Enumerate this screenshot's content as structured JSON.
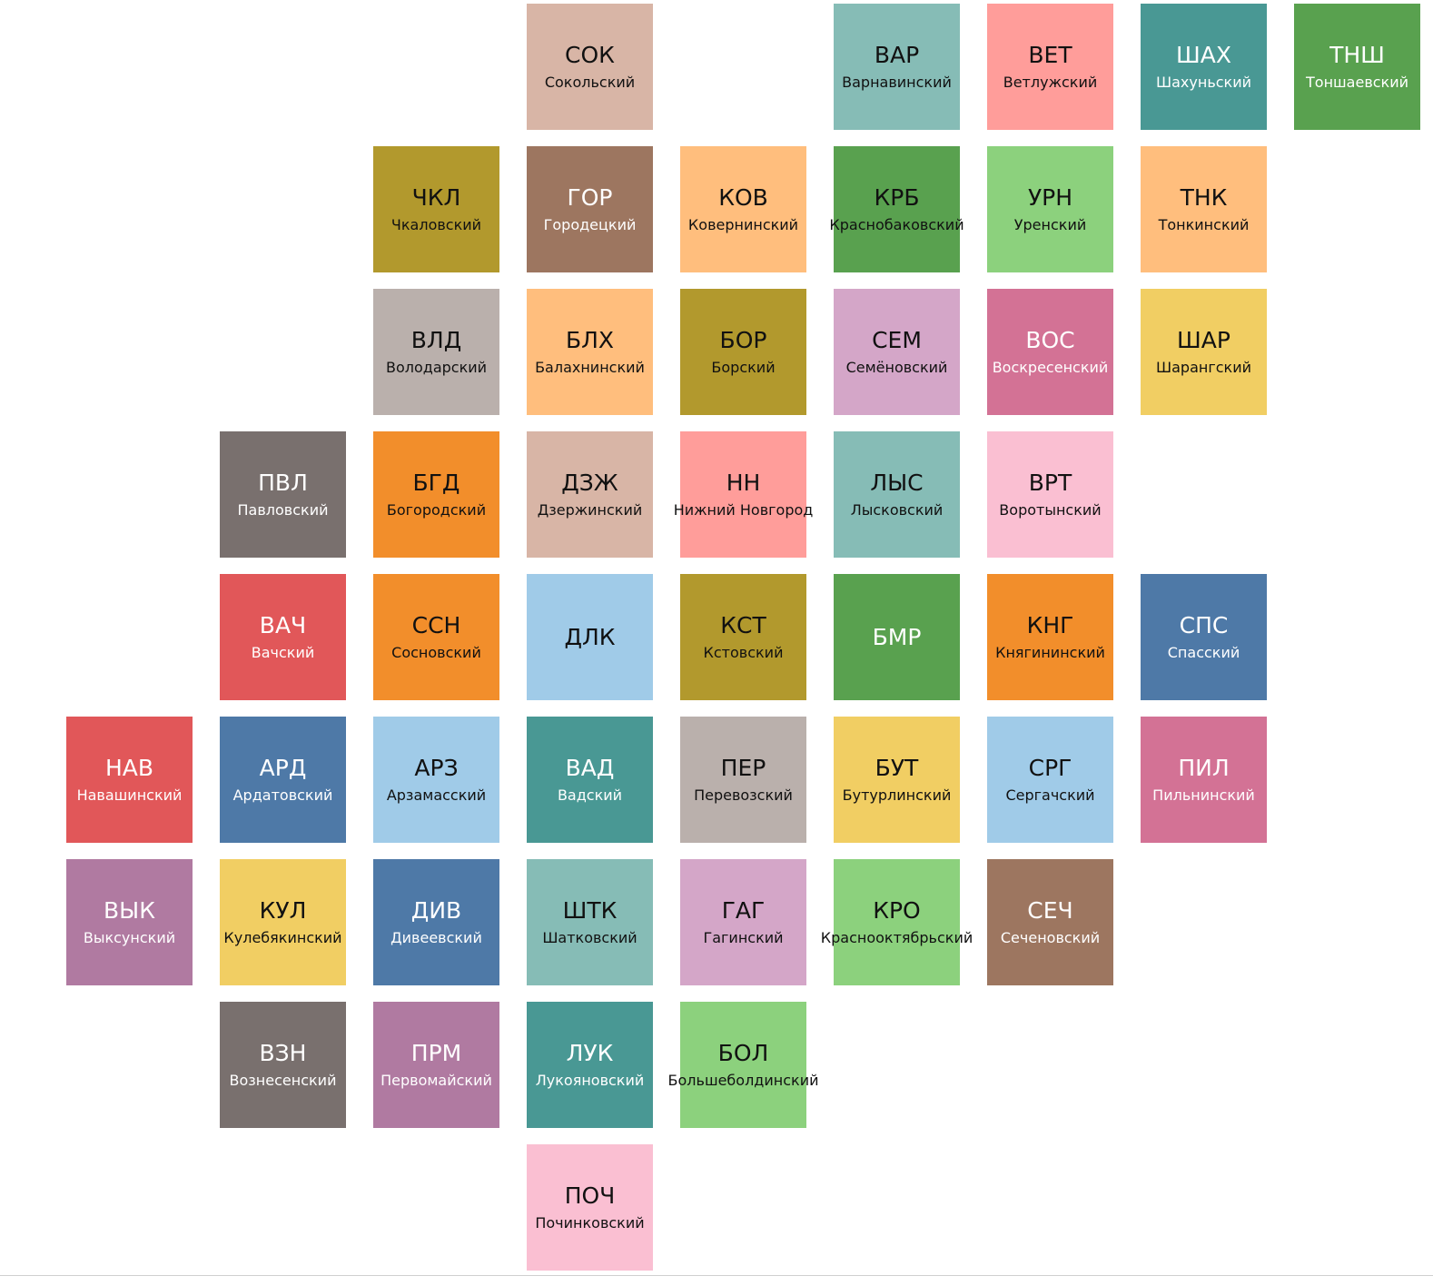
{
  "map": {
    "tiles": [
      {
        "abbr": "СОК",
        "name": "Сокольский",
        "row": 0,
        "col": 3,
        "color": "#d8b5a6",
        "text": "light"
      },
      {
        "abbr": "ВАР",
        "name": "Варнавинский",
        "row": 0,
        "col": 5,
        "color": "#86bcb6",
        "text": "light"
      },
      {
        "abbr": "ВЕТ",
        "name": "Ветлужский",
        "row": 0,
        "col": 6,
        "color": "#ff9d9a",
        "text": "light"
      },
      {
        "abbr": "ШАХ",
        "name": "Шахуньский",
        "row": 0,
        "col": 7,
        "color": "#499894",
        "text": "dark"
      },
      {
        "abbr": "ТНШ",
        "name": "Тоншаевский",
        "row": 0,
        "col": 8,
        "color": "#59a14f",
        "text": "dark"
      },
      {
        "abbr": "ЧКЛ",
        "name": "Чкаловский",
        "row": 1,
        "col": 2,
        "color": "#b2992d",
        "text": "light"
      },
      {
        "abbr": "ГОР",
        "name": "Городецкий",
        "row": 1,
        "col": 3,
        "color": "#9d7660",
        "text": "dark"
      },
      {
        "abbr": "КОВ",
        "name": "Ковернинский",
        "row": 1,
        "col": 4,
        "color": "#ffbe7d",
        "text": "light"
      },
      {
        "abbr": "КРБ",
        "name": "Краснобаковский",
        "row": 1,
        "col": 5,
        "color": "#59a14f",
        "text": "light"
      },
      {
        "abbr": "УРН",
        "name": "Уренский",
        "row": 1,
        "col": 6,
        "color": "#8cd17d",
        "text": "light"
      },
      {
        "abbr": "ТНК",
        "name": "Тонкинский",
        "row": 1,
        "col": 7,
        "color": "#ffbe7d",
        "text": "light"
      },
      {
        "abbr": "ВЛД",
        "name": "Володарский",
        "row": 2,
        "col": 2,
        "color": "#bab0ac",
        "text": "light"
      },
      {
        "abbr": "БЛХ",
        "name": "Балахнинский",
        "row": 2,
        "col": 3,
        "color": "#ffbe7d",
        "text": "light"
      },
      {
        "abbr": "БОР",
        "name": "Борский",
        "row": 2,
        "col": 4,
        "color": "#b2992d",
        "text": "light"
      },
      {
        "abbr": "СЕМ",
        "name": "Семёновский",
        "row": 2,
        "col": 5,
        "color": "#d4a6c8",
        "text": "light"
      },
      {
        "abbr": "ВОС",
        "name": "Воскресенский",
        "row": 2,
        "col": 6,
        "color": "#d37295",
        "text": "dark"
      },
      {
        "abbr": "ШАР",
        "name": "Шарангский",
        "row": 2,
        "col": 7,
        "color": "#f1ce63",
        "text": "light"
      },
      {
        "abbr": "ПВЛ",
        "name": "Павловский",
        "row": 3,
        "col": 1,
        "color": "#79706e",
        "text": "dark"
      },
      {
        "abbr": "БГД",
        "name": "Богородский",
        "row": 3,
        "col": 2,
        "color": "#f28e2b",
        "text": "light"
      },
      {
        "abbr": "ДЗЖ",
        "name": "Дзержинский",
        "row": 3,
        "col": 3,
        "color": "#d8b5a6",
        "text": "light"
      },
      {
        "abbr": "НН",
        "name": "Нижний Новгород",
        "row": 3,
        "col": 4,
        "color": "#ff9d9a",
        "text": "light"
      },
      {
        "abbr": "ЛЫС",
        "name": "Лысковский",
        "row": 3,
        "col": 5,
        "color": "#86bcb6",
        "text": "light"
      },
      {
        "abbr": "ВРТ",
        "name": "Воротынский",
        "row": 3,
        "col": 6,
        "color": "#fabfd2",
        "text": "light"
      },
      {
        "abbr": "ВАЧ",
        "name": "Вачский",
        "row": 4,
        "col": 1,
        "color": "#e15759",
        "text": "dark"
      },
      {
        "abbr": "ССН",
        "name": "Сосновский",
        "row": 4,
        "col": 2,
        "color": "#f28e2b",
        "text": "light"
      },
      {
        "abbr": "ДЛК",
        "name": "",
        "row": 4,
        "col": 3,
        "color": "#a0cbe8",
        "text": "light"
      },
      {
        "abbr": "КСТ",
        "name": "Кстовский",
        "row": 4,
        "col": 4,
        "color": "#b2992d",
        "text": "light"
      },
      {
        "abbr": "БМР",
        "name": "",
        "row": 4,
        "col": 5,
        "color": "#59a14f",
        "text": "dark"
      },
      {
        "abbr": "КНГ",
        "name": "Княгининский",
        "row": 4,
        "col": 6,
        "color": "#f28e2b",
        "text": "light"
      },
      {
        "abbr": "СПС",
        "name": "Спасский",
        "row": 4,
        "col": 7,
        "color": "#4e79a7",
        "text": "dark"
      },
      {
        "abbr": "НАВ",
        "name": "Навашинский",
        "row": 5,
        "col": 0,
        "color": "#e15759",
        "text": "dark"
      },
      {
        "abbr": "АРД",
        "name": "Ардатовский",
        "row": 5,
        "col": 1,
        "color": "#4e79a7",
        "text": "dark"
      },
      {
        "abbr": "АРЗ",
        "name": "Арзамасский",
        "row": 5,
        "col": 2,
        "color": "#a0cbe8",
        "text": "light"
      },
      {
        "abbr": "ВАД",
        "name": "Вадский",
        "row": 5,
        "col": 3,
        "color": "#499894",
        "text": "dark"
      },
      {
        "abbr": "ПЕР",
        "name": "Перевозский",
        "row": 5,
        "col": 4,
        "color": "#bab0ac",
        "text": "light"
      },
      {
        "abbr": "БУТ",
        "name": "Бутурлинский",
        "row": 5,
        "col": 5,
        "color": "#f1ce63",
        "text": "light"
      },
      {
        "abbr": "СРГ",
        "name": "Сергачский",
        "row": 5,
        "col": 6,
        "color": "#a0cbe8",
        "text": "light"
      },
      {
        "abbr": "ПИЛ",
        "name": "Пильнинский",
        "row": 5,
        "col": 7,
        "color": "#d37295",
        "text": "dark"
      },
      {
        "abbr": "ВЫК",
        "name": "Выксунский",
        "row": 6,
        "col": 0,
        "color": "#b07aa1",
        "text": "dark"
      },
      {
        "abbr": "КУЛ",
        "name": "Кулебякинский",
        "row": 6,
        "col": 1,
        "color": "#f1ce63",
        "text": "light"
      },
      {
        "abbr": "ДИВ",
        "name": "Дивеевский",
        "row": 6,
        "col": 2,
        "color": "#4e79a7",
        "text": "dark"
      },
      {
        "abbr": "ШТК",
        "name": "Шатковский",
        "row": 6,
        "col": 3,
        "color": "#86bcb6",
        "text": "light"
      },
      {
        "abbr": "ГАГ",
        "name": "Гагинский",
        "row": 6,
        "col": 4,
        "color": "#d4a6c8",
        "text": "light"
      },
      {
        "abbr": "КРО",
        "name": "Краснооктябрьский",
        "row": 6,
        "col": 5,
        "color": "#8cd17d",
        "text": "light"
      },
      {
        "abbr": "СЕЧ",
        "name": "Сеченовский",
        "row": 6,
        "col": 6,
        "color": "#9d7660",
        "text": "dark"
      },
      {
        "abbr": "ВЗН",
        "name": "Вознесенский",
        "row": 7,
        "col": 1,
        "color": "#79706e",
        "text": "dark"
      },
      {
        "abbr": "ПРМ",
        "name": "Первомайский",
        "row": 7,
        "col": 2,
        "color": "#b07aa1",
        "text": "dark"
      },
      {
        "abbr": "ЛУК",
        "name": "Лукояновский",
        "row": 7,
        "col": 3,
        "color": "#499894",
        "text": "dark"
      },
      {
        "abbr": "БОЛ",
        "name": "Большеболдинский",
        "row": 7,
        "col": 4,
        "color": "#8cd17d",
        "text": "light"
      },
      {
        "abbr": "ПОЧ",
        "name": "Починковский",
        "row": 8,
        "col": 3,
        "color": "#fabfd2",
        "text": "light"
      }
    ]
  }
}
